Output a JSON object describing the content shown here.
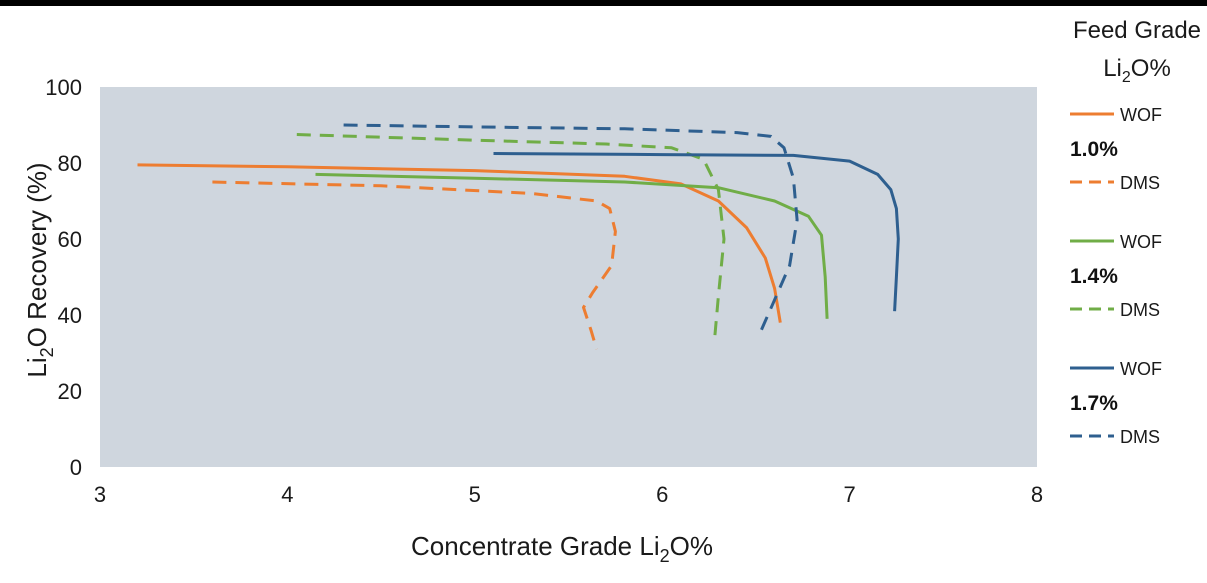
{
  "chart_data": {
    "type": "line",
    "title": "",
    "xlabel": "Concentrate Grade Li",
    "xlabel_sub": "2",
    "xlabel_tail": "O%",
    "ylabel": "Li",
    "ylabel_sub": "2",
    "ylabel_tail": "O Recovery (%)",
    "xlim": [
      3,
      8
    ],
    "ylim": [
      0,
      100
    ],
    "xticks": [
      3,
      4,
      5,
      6,
      7,
      8
    ],
    "yticks": [
      0,
      20,
      40,
      60,
      80,
      100
    ],
    "plot_background": "#cfd6de",
    "legend": {
      "title_line1": "Feed Grade",
      "title_line2_main": "Li",
      "title_line2_sub": "2",
      "title_line2_tail": "O%",
      "placement": "right",
      "groups": [
        {
          "grade": "1.0%",
          "wof_label": "WOF",
          "dms_label": "DMS",
          "color": "#ed7d31"
        },
        {
          "grade": "1.4%",
          "wof_label": "WOF",
          "dms_label": "DMS",
          "color": "#70ad47"
        },
        {
          "grade": "1.7%",
          "wof_label": "WOF",
          "dms_label": "DMS",
          "color": "#2e5f8f"
        }
      ]
    },
    "series": [
      {
        "key": "1.0-wof",
        "feed_grade": "1.0%",
        "method": "WOF",
        "dashed": false,
        "color": "#ed7d31",
        "x": [
          3.2,
          4.0,
          5.0,
          5.8,
          6.1,
          6.3,
          6.45,
          6.55,
          6.6,
          6.63
        ],
        "y": [
          79.5,
          79.0,
          78.0,
          76.5,
          74.5,
          70.0,
          63.0,
          55.0,
          47.0,
          38.0
        ]
      },
      {
        "key": "1.0-dms",
        "feed_grade": "1.0%",
        "method": "DMS",
        "dashed": true,
        "color": "#ed7d31",
        "x": [
          3.6,
          4.5,
          5.3,
          5.65,
          5.72,
          5.75,
          5.73,
          5.63,
          5.58,
          5.62,
          5.65
        ],
        "y": [
          75.0,
          74.0,
          72.0,
          70.0,
          68.0,
          62.0,
          53.0,
          46.0,
          42.0,
          36.0,
          31.0
        ]
      },
      {
        "key": "1.4-wof",
        "feed_grade": "1.4%",
        "method": "WOF",
        "dashed": false,
        "color": "#70ad47",
        "x": [
          4.15,
          5.0,
          5.8,
          6.3,
          6.6,
          6.78,
          6.85,
          6.87,
          6.88
        ],
        "y": [
          77.0,
          76.0,
          75.0,
          73.5,
          70.0,
          66.0,
          61.0,
          50.0,
          39.0
        ]
      },
      {
        "key": "1.4-dms",
        "feed_grade": "1.4%",
        "method": "DMS",
        "dashed": true,
        "color": "#70ad47",
        "x": [
          4.05,
          5.0,
          5.7,
          6.05,
          6.22,
          6.3,
          6.33,
          6.3,
          6.28
        ],
        "y": [
          87.5,
          86.0,
          85.0,
          84.0,
          81.0,
          73.0,
          60.0,
          45.0,
          34.0
        ]
      },
      {
        "key": "1.7-wof",
        "feed_grade": "1.7%",
        "method": "WOF",
        "dashed": false,
        "color": "#2e5f8f",
        "x": [
          5.1,
          6.0,
          6.7,
          7.0,
          7.15,
          7.22,
          7.25,
          7.26,
          7.25,
          7.24
        ],
        "y": [
          82.5,
          82.2,
          82.0,
          80.5,
          77.0,
          73.0,
          68.0,
          60.0,
          50.0,
          41.0
        ]
      },
      {
        "key": "1.7-dms",
        "feed_grade": "1.7%",
        "method": "DMS",
        "dashed": true,
        "color": "#2e5f8f",
        "x": [
          4.3,
          5.0,
          5.8,
          6.4,
          6.58,
          6.65,
          6.7,
          6.72,
          6.68,
          6.6,
          6.52
        ],
        "y": [
          90.0,
          89.5,
          89.0,
          88.0,
          87.0,
          84.0,
          76.0,
          65.0,
          53.0,
          44.0,
          35.0
        ]
      }
    ]
  }
}
